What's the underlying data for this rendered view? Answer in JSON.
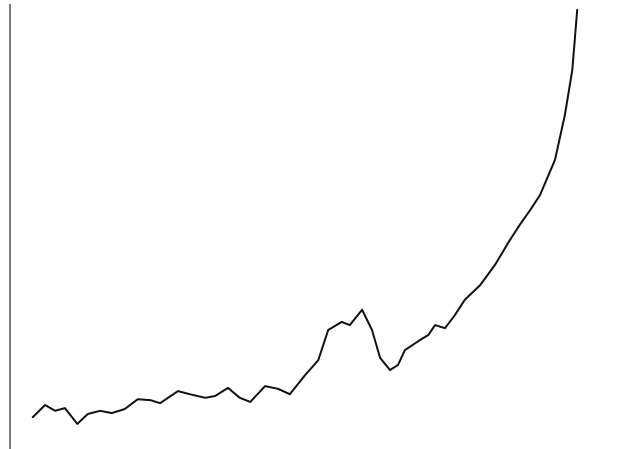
{
  "chart_data": {
    "type": "line",
    "x": [
      5.3,
      7.3,
      8.9,
      10.5,
      12.5,
      14.2,
      16.2,
      18.1,
      20.2,
      22.3,
      24.3,
      25.9,
      28.8,
      30.7,
      33.2,
      34.8,
      36.9,
      38.8,
      40.5,
      42.9,
      45.0,
      46.9,
      49.4,
      51.5,
      53.1,
      55.3,
      56.6,
      58.6,
      60.2,
      61.5,
      63.1,
      64.4,
      65.5,
      68.0,
      69.3,
      70.4,
      72.0,
      73.6,
      75.2,
      77.7,
      80.1,
      82.5,
      84.1,
      85.8,
      87.4,
      89.8,
      91.4,
      92.6,
      93.4
    ],
    "values": [
      7.1,
      9.8,
      8.5,
      9.1,
      5.6,
      7.8,
      8.5,
      8.0,
      8.9,
      11.1,
      10.9,
      10.2,
      12.9,
      12.2,
      11.4,
      11.8,
      13.6,
      11.4,
      10.5,
      14.0,
      13.4,
      12.2,
      16.5,
      19.8,
      26.5,
      28.3,
      27.6,
      31.0,
      26.5,
      20.3,
      17.6,
      18.7,
      22.0,
      24.3,
      25.4,
      27.6,
      26.9,
      29.8,
      33.2,
      36.5,
      41.0,
      46.5,
      49.9,
      53.2,
      56.6,
      64.4,
      74.4,
      84.4,
      97.8
    ],
    "color": "#111111",
    "xlim": [
      0,
      100
    ],
    "ylim": [
      0,
      100
    ]
  }
}
